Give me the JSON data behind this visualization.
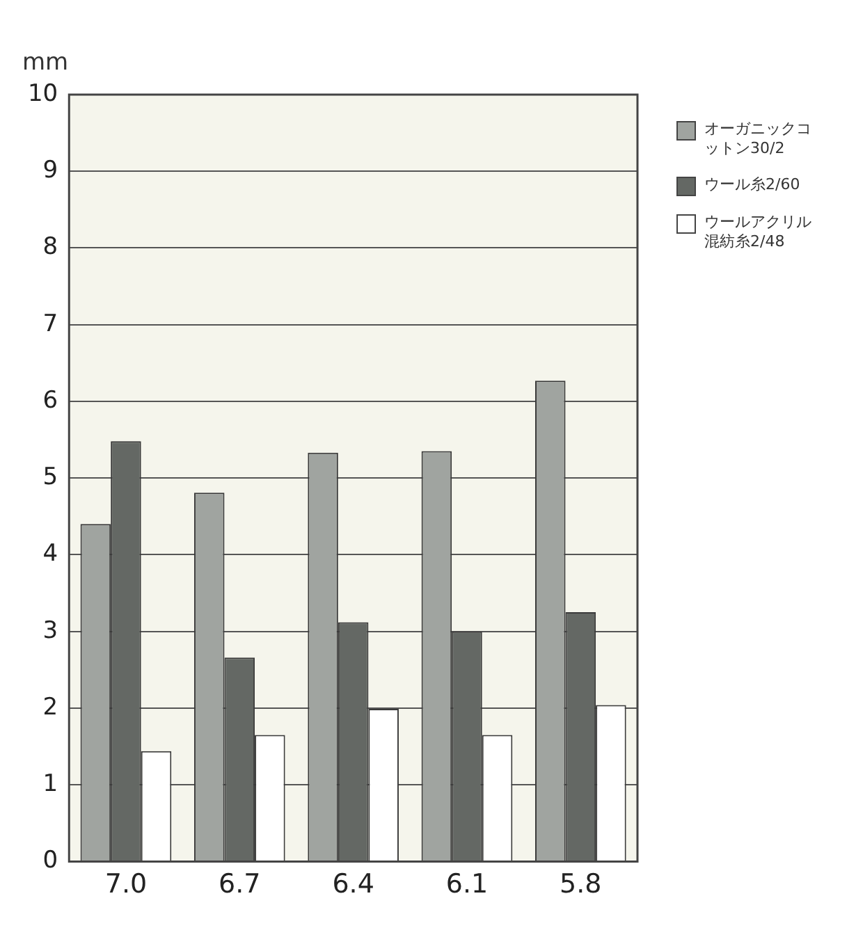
{
  "chart_data": {
    "type": "bar",
    "ylabel": "mm",
    "categories": [
      "7.0",
      "6.7",
      "6.4",
      "6.1",
      "5.8"
    ],
    "series": [
      {
        "name": "オーガニックコットン30/2",
        "color": "#a0a4a0",
        "values": [
          4.4,
          4.81,
          5.33,
          5.35,
          6.27
        ]
      },
      {
        "name": "ウール糸2/60",
        "color": "#646864",
        "values": [
          5.48,
          2.66,
          3.12,
          3.0,
          3.25
        ]
      },
      {
        "name": "ウールアクリル混紡糸2/48",
        "color": "#ffffff",
        "values": [
          1.44,
          1.65,
          1.99,
          1.65,
          2.04
        ]
      }
    ],
    "ylim": [
      0,
      10
    ],
    "yticks": [
      0,
      1,
      2,
      3,
      4,
      5,
      6,
      7,
      8,
      9,
      10
    ],
    "grid": "y",
    "legend": "top right"
  }
}
